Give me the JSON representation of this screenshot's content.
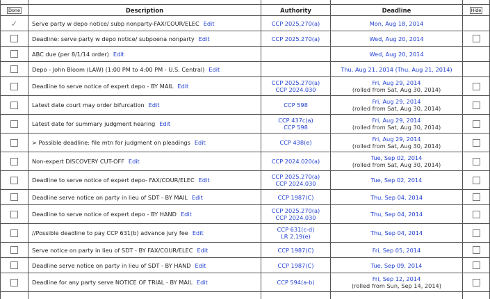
{
  "header": {
    "done": "Done",
    "description": "Description",
    "authority": "Authority",
    "deadline": "Deadline",
    "hide": "Hide"
  },
  "edit_label": "Edit",
  "rows": [
    {
      "done": true,
      "hide_box": false,
      "description": "Serve party w depo notice/ subp nonparty-FAX/COUR/ELEC",
      "authority": [
        "CCP 2025.270(a)"
      ],
      "deadline": [
        "Mon, Aug 18, 2014"
      ]
    },
    {
      "done": false,
      "hide_box": true,
      "description": "Deadline: serve party w depo notice/ subpoena nonparty",
      "authority": [
        "CCP 2025.270(a)"
      ],
      "deadline": [
        "Wed, Aug 20, 2014"
      ]
    },
    {
      "done": false,
      "hide_box": false,
      "description": "ABC due (per 8/1/14 order)",
      "authority": [],
      "deadline": [
        "Wed, Aug 20, 2014"
      ]
    },
    {
      "done": false,
      "hide_box": false,
      "description": "Depo - John Bloom (LAW) (1:00 PM to 4:00 PM - U.S. Central)",
      "authority": [],
      "deadline": [
        "Thu, Aug 21, 2014 (Thu, Aug 21, 2014)"
      ]
    },
    {
      "done": false,
      "hide_box": true,
      "description": "Deadline to serve notice of expert depo - BY MAIL",
      "authority": [
        "CCP 2025.270(a)",
        "CCP 2024.030"
      ],
      "deadline": [
        "Fri, Aug 29, 2014",
        "(rolled from Sat, Aug 30, 2014)"
      ]
    },
    {
      "done": false,
      "hide_box": true,
      "description": "Latest date court may order bifurcation",
      "authority": [
        "CCP 598"
      ],
      "deadline": [
        "Fri, Aug 29, 2014",
        "(rolled from Sat, Aug 30, 2014)"
      ]
    },
    {
      "done": false,
      "hide_box": true,
      "description": "Latest date for summary judgment hearing",
      "authority": [
        "CCP 437c(a)",
        "CCP 598"
      ],
      "deadline": [
        "Fri, Aug 29, 2014",
        "(rolled from Sat, Aug 30, 2014)"
      ]
    },
    {
      "done": false,
      "hide_box": true,
      "description": "> Possible deadline: file mtn for judgment on pleadings",
      "authority": [
        "CCP 438(e)"
      ],
      "deadline": [
        "Fri, Aug 29, 2014",
        "(rolled from Sat, Aug 30, 2014)"
      ]
    },
    {
      "done": false,
      "hide_box": true,
      "description": "Non-expert DISCOVERY CUT-OFF",
      "authority": [
        "CCP 2024.020(a)"
      ],
      "deadline": [
        "Tue, Sep 02, 2014",
        "(rolled from Sat, Aug 30, 2014)"
      ]
    },
    {
      "done": false,
      "hide_box": true,
      "description": "Deadline to serve notice of expert depo- FAX/COUR/ELEC",
      "authority": [
        "CCP 2025.270(a)",
        "CCP 2024.030"
      ],
      "deadline": [
        "Tue, Sep 02, 2014"
      ]
    },
    {
      "done": false,
      "hide_box": true,
      "description": "Deadline serve notice on party in lieu of SDT - BY MAIL",
      "authority": [
        "CCP 1987(C)"
      ],
      "deadline": [
        "Thu, Sep 04, 2014"
      ]
    },
    {
      "done": false,
      "hide_box": true,
      "description": "Deadline to serve notice of expert depo - BY HAND",
      "authority": [
        "CCP 2025.270(a)",
        "CCP 2024.030"
      ],
      "deadline": [
        "Thu, Sep 04, 2014"
      ]
    },
    {
      "done": false,
      "hide_box": true,
      "description": "//Possible deadline to pay CCP 631(b) advance jury fee",
      "authority": [
        "CCP 631(c-d)",
        "LR 2.19(e)"
      ],
      "deadline": [
        "Thu, Sep 04, 2014"
      ]
    },
    {
      "done": false,
      "hide_box": true,
      "description": "Serve notice on party in lieu of SDT - BY FAX/COUR/ELEC",
      "authority": [
        "CCP 1987(C)"
      ],
      "deadline": [
        "Fri, Sep 05, 2014"
      ]
    },
    {
      "done": false,
      "hide_box": true,
      "description": "Deadline serve notice on party in lieu of SDT - BY HAND",
      "authority": [
        "CCP 1987(C)"
      ],
      "deadline": [
        "Tue, Sep 09, 2014"
      ]
    },
    {
      "done": false,
      "hide_box": true,
      "description": "Deadline for any party serve NOTICE OF TRIAL - BY MAIL",
      "authority": [
        "CCP 594(a-b)"
      ],
      "deadline": [
        "Fri, Sep 12, 2014",
        "(rolled from Sun, Sep 14, 2014)"
      ]
    }
  ]
}
